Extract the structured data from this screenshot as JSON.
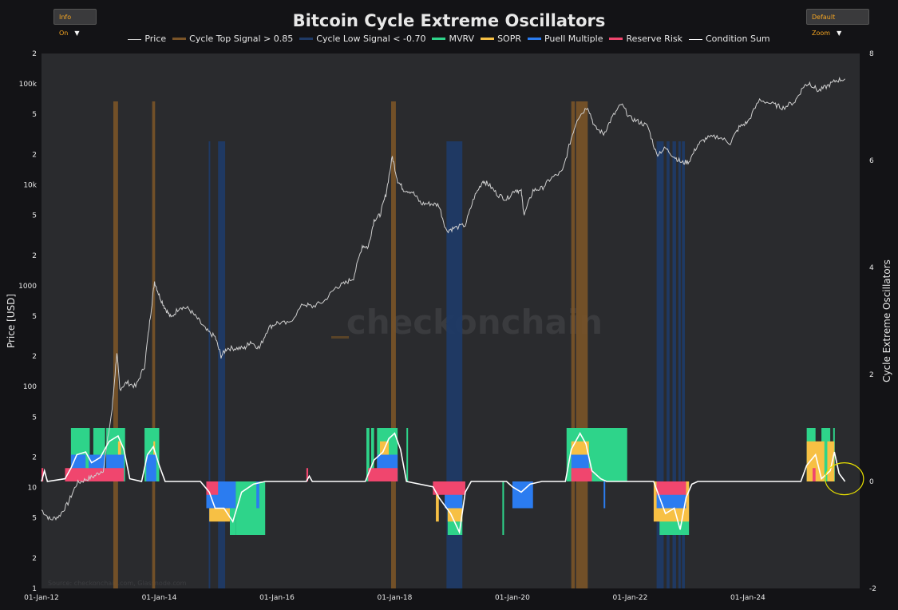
{
  "controls": {
    "info_label": "Info On",
    "zoom_label": "Default Zoom",
    "caret": "▼"
  },
  "chart_data": {
    "type": "line",
    "title": "Bitcoin Cycle Extreme Oscillators",
    "watermark": "checkonchain",
    "source": "Source: checkonchain.com, Glassnode.com",
    "legend": [
      {
        "name": "Price",
        "color": "#cfcfcf"
      },
      {
        "name": "Cycle Top Signal > 0.85",
        "color": "#7a5428"
      },
      {
        "name": "Cycle Low Signal < -0.70",
        "color": "#1f3a66"
      },
      {
        "name": "MVRV",
        "color": "#2ed48a"
      },
      {
        "name": "SOPR",
        "color": "#f7c044"
      },
      {
        "name": "Puell Multiple",
        "color": "#2b7cf0"
      },
      {
        "name": "Reserve Risk",
        "color": "#f0466e"
      },
      {
        "name": "Condition Sum",
        "color": "#ffffff"
      }
    ],
    "y_left": {
      "label": "Price [USD]",
      "scale": "log",
      "range": [
        1,
        200000
      ],
      "ticks": [
        {
          "v": 1,
          "t": "1"
        },
        {
          "v": 2,
          "t": "2"
        },
        {
          "v": 5,
          "t": "5"
        },
        {
          "v": 10,
          "t": "10"
        },
        {
          "v": 20,
          "t": "2"
        },
        {
          "v": 50,
          "t": "5"
        },
        {
          "v": 100,
          "t": "100"
        },
        {
          "v": 200,
          "t": "2"
        },
        {
          "v": 500,
          "t": "5"
        },
        {
          "v": 1000,
          "t": "1000"
        },
        {
          "v": 2000,
          "t": "2"
        },
        {
          "v": 5000,
          "t": "5"
        },
        {
          "v": 10000,
          "t": "10k"
        },
        {
          "v": 20000,
          "t": "2"
        },
        {
          "v": 50000,
          "t": "5"
        },
        {
          "v": 100000,
          "t": "100k"
        },
        {
          "v": 200000,
          "t": "2"
        }
      ]
    },
    "y_right": {
      "label": "Cycle Extreme Oscillators",
      "range": [
        -2,
        8
      ],
      "ticks": [
        "-2",
        "0",
        "2",
        "4",
        "6",
        "8"
      ]
    },
    "x_axis": {
      "range": [
        2012.0,
        2025.9
      ],
      "ticks": [
        {
          "v": 2012,
          "t": "01-Jan-12"
        },
        {
          "v": 2014,
          "t": "01-Jan-14"
        },
        {
          "v": 2016,
          "t": "01-Jan-16"
        },
        {
          "v": 2018,
          "t": "01-Jan-18"
        },
        {
          "v": 2020,
          "t": "01-Jan-20"
        },
        {
          "v": 2022,
          "t": "01-Jan-22"
        },
        {
          "v": 2024,
          "t": "01-Jan-24"
        }
      ]
    },
    "price": [
      [
        2012.0,
        6
      ],
      [
        2012.15,
        4.8
      ],
      [
        2012.3,
        5.2
      ],
      [
        2012.45,
        7
      ],
      [
        2012.6,
        11
      ],
      [
        2012.75,
        12
      ],
      [
        2012.9,
        13
      ],
      [
        2013.05,
        15
      ],
      [
        2013.2,
        60
      ],
      [
        2013.28,
        220
      ],
      [
        2013.33,
        95
      ],
      [
        2013.45,
        110
      ],
      [
        2013.6,
        100
      ],
      [
        2013.75,
        160
      ],
      [
        2013.85,
        500
      ],
      [
        2013.92,
        1100
      ],
      [
        2014.0,
        800
      ],
      [
        2014.1,
        600
      ],
      [
        2014.2,
        480
      ],
      [
        2014.35,
        620
      ],
      [
        2014.5,
        590
      ],
      [
        2014.65,
        470
      ],
      [
        2014.8,
        360
      ],
      [
        2014.95,
        310
      ],
      [
        2015.05,
        200
      ],
      [
        2015.15,
        240
      ],
      [
        2015.3,
        240
      ],
      [
        2015.45,
        240
      ],
      [
        2015.55,
        280
      ],
      [
        2015.7,
        240
      ],
      [
        2015.85,
        380
      ],
      [
        2016.0,
        430
      ],
      [
        2016.2,
        420
      ],
      [
        2016.45,
        660
      ],
      [
        2016.6,
        620
      ],
      [
        2016.8,
        700
      ],
      [
        2017.0,
        960
      ],
      [
        2017.15,
        1050
      ],
      [
        2017.3,
        1200
      ],
      [
        2017.45,
        2500
      ],
      [
        2017.55,
        2400
      ],
      [
        2017.65,
        4500
      ],
      [
        2017.75,
        5000
      ],
      [
        2017.85,
        8000
      ],
      [
        2017.96,
        19000
      ],
      [
        2018.05,
        11000
      ],
      [
        2018.15,
        9000
      ],
      [
        2018.3,
        8500
      ],
      [
        2018.45,
        6500
      ],
      [
        2018.6,
        6500
      ],
      [
        2018.75,
        6300
      ],
      [
        2018.88,
        3500
      ],
      [
        2019.0,
        3700
      ],
      [
        2019.2,
        4000
      ],
      [
        2019.35,
        7500
      ],
      [
        2019.5,
        11000
      ],
      [
        2019.6,
        10000
      ],
      [
        2019.75,
        8000
      ],
      [
        2019.9,
        7200
      ],
      [
        2020.05,
        9000
      ],
      [
        2020.15,
        8500
      ],
      [
        2020.2,
        5000
      ],
      [
        2020.35,
        8800
      ],
      [
        2020.5,
        9200
      ],
      [
        2020.65,
        11500
      ],
      [
        2020.85,
        13500
      ],
      [
        2021.0,
        29000
      ],
      [
        2021.1,
        45000
      ],
      [
        2021.28,
        60000
      ],
      [
        2021.4,
        37000
      ],
      [
        2021.55,
        32000
      ],
      [
        2021.7,
        47000
      ],
      [
        2021.85,
        63000
      ],
      [
        2022.0,
        46000
      ],
      [
        2022.15,
        42000
      ],
      [
        2022.3,
        38000
      ],
      [
        2022.45,
        20000
      ],
      [
        2022.6,
        23000
      ],
      [
        2022.75,
        19000
      ],
      [
        2022.88,
        16500
      ],
      [
        2023.0,
        17000
      ],
      [
        2023.15,
        25000
      ],
      [
        2023.3,
        29000
      ],
      [
        2023.5,
        30000
      ],
      [
        2023.7,
        26000
      ],
      [
        2023.85,
        37000
      ],
      [
        2024.0,
        42000
      ],
      [
        2024.2,
        70000
      ],
      [
        2024.45,
        62000
      ],
      [
        2024.6,
        58000
      ],
      [
        2024.8,
        67000
      ],
      [
        2024.95,
        95000
      ],
      [
        2025.05,
        102000
      ],
      [
        2025.2,
        85000
      ],
      [
        2025.35,
        95000
      ],
      [
        2025.5,
        108000
      ],
      [
        2025.65,
        112000
      ]
    ],
    "cycle_top_signal": [
      [
        2013.22,
        2013.3
      ],
      [
        2013.88,
        2013.93
      ],
      [
        2017.94,
        2018.02
      ],
      [
        2021.0,
        2021.06
      ],
      [
        2021.08,
        2021.28
      ]
    ],
    "cycle_low_signal": [
      [
        2014.84,
        2014.86
      ],
      [
        2015.0,
        2015.12
      ],
      [
        2018.88,
        2019.15
      ],
      [
        2022.45,
        2022.57
      ],
      [
        2022.62,
        2022.67
      ],
      [
        2022.72,
        2022.78
      ],
      [
        2022.82,
        2022.86
      ],
      [
        2022.88,
        2022.93
      ]
    ],
    "mvrv": [
      [
        2012.5,
        2012.82
      ],
      [
        2012.88,
        2013.08
      ],
      [
        2013.1,
        2013.42
      ],
      [
        2013.75,
        2014.0
      ],
      [
        2017.52,
        2017.57
      ],
      [
        2017.6,
        2017.65
      ],
      [
        2017.7,
        2018.05
      ],
      [
        2018.2,
        2018.22
      ],
      [
        2021.95,
        2021.0
      ],
      [
        2020.92,
        2021.35
      ],
      [
        2021.42,
        2021.55
      ],
      [
        2025.0,
        2025.15
      ],
      [
        2025.25,
        2025.4
      ],
      [
        2025.45,
        2025.47
      ]
    ],
    "mvrv_neg": [
      [
        2015.2,
        2015.3
      ],
      [
        2015.3,
        2015.8
      ],
      [
        2018.9,
        2019.15
      ],
      [
        2022.5,
        2023.0
      ],
      [
        2019.83,
        2019.85
      ]
    ],
    "sopr": [
      [
        2013.3,
        2013.35
      ],
      [
        2013.9,
        2013.93
      ],
      [
        2017.75,
        2017.9
      ],
      [
        2021.0,
        2021.3
      ],
      [
        2025.0,
        2025.3
      ],
      [
        2025.35,
        2025.47
      ]
    ],
    "sopr_neg": [
      [
        2014.85,
        2015.2
      ],
      [
        2018.7,
        2018.75
      ],
      [
        2018.9,
        2019.15
      ],
      [
        2022.4,
        2023.0
      ]
    ],
    "puell_multiple": [
      [
        2012.5,
        2012.75
      ],
      [
        2012.8,
        2013.08
      ],
      [
        2013.1,
        2013.4
      ],
      [
        2013.78,
        2013.95
      ],
      [
        2017.7,
        2018.05
      ],
      [
        2021.0,
        2021.3
      ]
    ],
    "puell_neg": [
      [
        2014.8,
        2015.3
      ],
      [
        2015.65,
        2015.7
      ],
      [
        2018.85,
        2019.15
      ],
      [
        2020.0,
        2020.35
      ],
      [
        2021.55,
        2021.57
      ],
      [
        2022.45,
        2022.95
      ]
    ],
    "reserve_risk": [
      [
        2012.0,
        2012.03
      ],
      [
        2012.4,
        2013.4
      ],
      [
        2016.5,
        2016.53
      ],
      [
        2017.55,
        2018.05
      ],
      [
        2021.0,
        2021.35
      ],
      [
        2025.1,
        2025.15
      ]
    ],
    "reserve_neg": [
      [
        2014.8,
        2015.0
      ],
      [
        2018.65,
        2019.2
      ],
      [
        2022.45,
        2022.95
      ]
    ],
    "condition_sum": [
      [
        2012.0,
        0
      ],
      [
        2012.05,
        0.2
      ],
      [
        2012.1,
        0
      ],
      [
        2012.4,
        0.05
      ],
      [
        2012.5,
        0.25
      ],
      [
        2012.6,
        0.5
      ],
      [
        2012.75,
        0.55
      ],
      [
        2012.85,
        0.35
      ],
      [
        2013.0,
        0.45
      ],
      [
        2013.15,
        0.75
      ],
      [
        2013.3,
        0.85
      ],
      [
        2013.4,
        0.6
      ],
      [
        2013.5,
        0.05
      ],
      [
        2013.7,
        0
      ],
      [
        2013.8,
        0.5
      ],
      [
        2013.9,
        0.65
      ],
      [
        2014.0,
        0.3
      ],
      [
        2014.1,
        0
      ],
      [
        2014.7,
        0
      ],
      [
        2014.85,
        -0.2
      ],
      [
        2014.95,
        -0.5
      ],
      [
        2015.1,
        -0.5
      ],
      [
        2015.25,
        -0.75
      ],
      [
        2015.4,
        -0.2
      ],
      [
        2015.6,
        -0.05
      ],
      [
        2015.8,
        0
      ],
      [
        2016.5,
        0
      ],
      [
        2016.55,
        0.1
      ],
      [
        2016.6,
        0
      ],
      [
        2017.5,
        0
      ],
      [
        2017.65,
        0.4
      ],
      [
        2017.8,
        0.55
      ],
      [
        2017.9,
        0.8
      ],
      [
        2018.0,
        0.9
      ],
      [
        2018.1,
        0.6
      ],
      [
        2018.2,
        0
      ],
      [
        2018.65,
        -0.1
      ],
      [
        2018.75,
        -0.3
      ],
      [
        2018.95,
        -0.6
      ],
      [
        2019.1,
        -0.95
      ],
      [
        2019.2,
        -0.2
      ],
      [
        2019.3,
        0
      ],
      [
        2019.9,
        0
      ],
      [
        2020.0,
        -0.1
      ],
      [
        2020.15,
        -0.2
      ],
      [
        2020.3,
        -0.05
      ],
      [
        2020.5,
        0
      ],
      [
        2020.9,
        0
      ],
      [
        2021.0,
        0.6
      ],
      [
        2021.15,
        0.9
      ],
      [
        2021.25,
        0.7
      ],
      [
        2021.35,
        0.2
      ],
      [
        2021.5,
        0.05
      ],
      [
        2021.6,
        0
      ],
      [
        2022.4,
        0
      ],
      [
        2022.5,
        -0.3
      ],
      [
        2022.6,
        -0.6
      ],
      [
        2022.75,
        -0.5
      ],
      [
        2022.85,
        -0.9
      ],
      [
        2022.95,
        -0.3
      ],
      [
        2023.05,
        -0.05
      ],
      [
        2023.15,
        0
      ],
      [
        2024.9,
        0
      ],
      [
        2025.0,
        0.3
      ],
      [
        2025.15,
        0.5
      ],
      [
        2025.25,
        0.05
      ],
      [
        2025.4,
        0.2
      ],
      [
        2025.47,
        0.55
      ],
      [
        2025.55,
        0.15
      ],
      [
        2025.65,
        0
      ]
    ],
    "annotation": {
      "type": "ellipse",
      "x": 2025.64,
      "y": 0.05,
      "color": "#e8e000"
    }
  }
}
